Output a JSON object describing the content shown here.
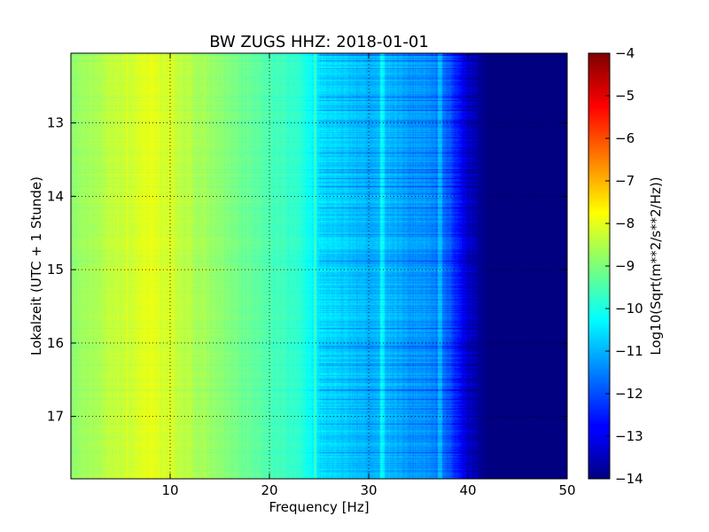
{
  "chart_data": {
    "type": "heatmap",
    "title": "BW ZUGS HHZ: 2018-01-01",
    "xlabel": "Frequency [Hz]",
    "ylabel": "Lokalzeit (UTC + 1 Stunde)",
    "xlim": [
      0,
      50
    ],
    "ylim": [
      17.85,
      12.05
    ],
    "y_inverted": true,
    "xticks": [
      10,
      20,
      30,
      40,
      50
    ],
    "yticks": [
      13,
      14,
      15,
      16,
      17
    ],
    "grid": true,
    "colormap": "jet",
    "colorbar": {
      "label": "Log10(Sqrt(m**2/s**2/Hz))",
      "range": [
        -14,
        -4
      ],
      "ticks": [
        -4,
        -5,
        -6,
        -7,
        -8,
        -9,
        -10,
        -11,
        -12,
        -13,
        -14
      ]
    },
    "z_profile": {
      "description": "approximate PSD level (log10) vs frequency, roughly constant over time",
      "frequency_hz": [
        0,
        2,
        5,
        8,
        10,
        13,
        16,
        20,
        23,
        25,
        28,
        30,
        32,
        34,
        36,
        38,
        39,
        40,
        41,
        42,
        50
      ],
      "value": [
        -8.8,
        -8.6,
        -8.3,
        -8.0,
        -8.2,
        -8.6,
        -9.0,
        -9.5,
        -9.8,
        -10.5,
        -10.8,
        -11.0,
        -10.9,
        -11.2,
        -11.3,
        -11.8,
        -12.5,
        -13.2,
        -13.7,
        -14.0,
        -14.0
      ]
    }
  }
}
